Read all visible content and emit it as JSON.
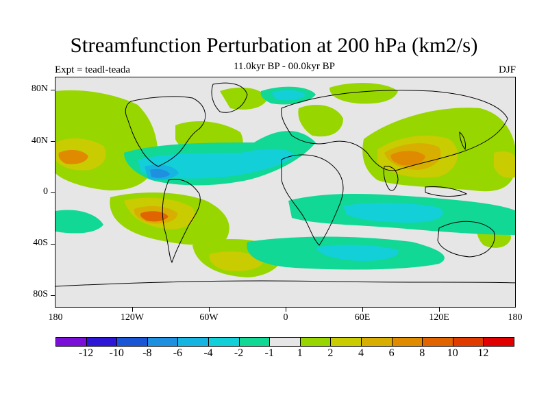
{
  "title": "Streamfunction Perturbation at 200 hPa (km2/s)",
  "subtitle_left": "Expt = teadl-teada",
  "subtitle_center": "11.0kyr BP - 00.0kyr BP",
  "subtitle_right": "DJF",
  "lat_labels": [
    "80N",
    "40N",
    "0",
    "40S",
    "80S"
  ],
  "lon_labels": [
    "180",
    "120W",
    "60W",
    "0",
    "60E",
    "120E",
    "180"
  ],
  "colorbar": {
    "colors": [
      "#7a10d8",
      "#2c17d6",
      "#1a55d6",
      "#1f8fe0",
      "#16b4e0",
      "#13cfd8",
      "#11d895",
      "#e6e6e6",
      "#98d600",
      "#c8cc00",
      "#d8ae00",
      "#e08a00",
      "#e06400",
      "#e03c00",
      "#e00000"
    ],
    "labels": [
      "-12",
      "-10",
      "-8",
      "-6",
      "-4",
      "-2",
      "-1",
      "1",
      "2",
      "4",
      "6",
      "8",
      "10",
      "12"
    ]
  },
  "fill_colors": {
    "bg": "#e6e6e6",
    "c2": "#98d600",
    "c4": "#c8cc00",
    "c6": "#d8ae00",
    "c8": "#e08a00",
    "c10": "#e06400",
    "n1": "#11d895",
    "n2": "#13cfd8",
    "n4": "#16b4e0",
    "n6": "#1f8fe0"
  }
}
